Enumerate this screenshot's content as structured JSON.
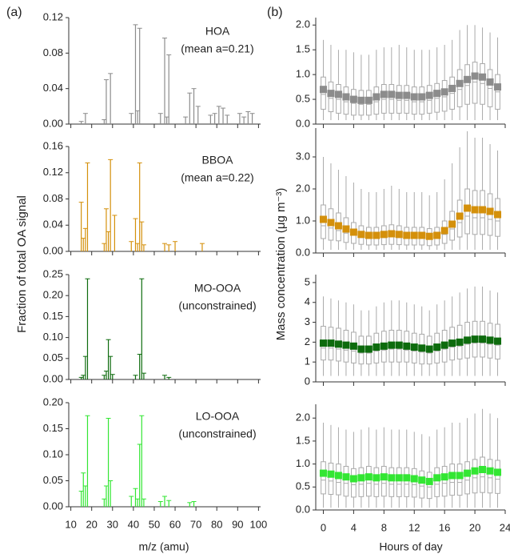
{
  "figure": {
    "panel_a": "(a)",
    "panel_b": "(b)",
    "left_ylabel": "Fraction of total OA signal",
    "left_xlabel": "m/z (amu)",
    "right_ylabel": "Mass concentration (μg m⁻³)",
    "right_xlabel": "Hours of day"
  },
  "chart_data": [
    {
      "type": "bar",
      "label": "HOA",
      "note": "(mean a=0.21)",
      "color": "#8c8c8c",
      "x": [
        15,
        17,
        26,
        27,
        29,
        39,
        41,
        42,
        43,
        53,
        55,
        56,
        57,
        65,
        67,
        69,
        71,
        77,
        79,
        81,
        83,
        85,
        91,
        93,
        95,
        97
      ],
      "values": [
        0.003,
        0.012,
        0.005,
        0.05,
        0.057,
        0.012,
        0.112,
        0.015,
        0.108,
        0.012,
        0.097,
        0.008,
        0.078,
        0.008,
        0.035,
        0.04,
        0.02,
        0.01,
        0.012,
        0.02,
        0.018,
        0.01,
        0.012,
        0.008,
        0.014,
        0.012
      ],
      "xlim": [
        9,
        101
      ],
      "xticks": [
        10,
        20,
        30,
        40,
        50,
        60,
        70,
        80,
        90,
        100
      ],
      "ylim": [
        0,
        0.12
      ],
      "yticks": [
        {
          "value": 0,
          "label": "0.00"
        },
        0.04,
        0.08,
        0.12
      ]
    },
    {
      "type": "bar",
      "label": "BBOA",
      "note": "(mean a=0.22)",
      "color": "#d4900b",
      "x": [
        15,
        16,
        17,
        18,
        26,
        27,
        28,
        29,
        31,
        39,
        41,
        42,
        43,
        44,
        45,
        55,
        57,
        60,
        73
      ],
      "values": [
        0.075,
        0.02,
        0.035,
        0.135,
        0.012,
        0.065,
        0.03,
        0.14,
        0.055,
        0.015,
        0.05,
        0.012,
        0.135,
        0.045,
        0.01,
        0.012,
        0.01,
        0.015,
        0.012
      ],
      "xlim": [
        9,
        101
      ],
      "xticks": [
        10,
        20,
        30,
        40,
        50,
        60,
        70,
        80,
        90,
        100
      ],
      "ylim": [
        0,
        0.16
      ],
      "yticks": [
        {
          "value": 0,
          "label": "0.00"
        },
        0.04,
        0.08,
        0.12,
        0.16
      ]
    },
    {
      "type": "bar",
      "label": "MO-OOA",
      "note": "(unconstrained)",
      "color": "#0d6b0d",
      "x": [
        15,
        16,
        17,
        18,
        26,
        27,
        28,
        29,
        30,
        41,
        43,
        44,
        45,
        55,
        57
      ],
      "values": [
        0.005,
        0.01,
        0.055,
        0.24,
        0.01,
        0.02,
        0.095,
        0.055,
        0.012,
        0.01,
        0.06,
        0.24,
        0.015,
        0.01,
        0.005
      ],
      "xlim": [
        9,
        101
      ],
      "xticks": [
        10,
        20,
        30,
        40,
        50,
        60,
        70,
        80,
        90,
        100
      ],
      "ylim": [
        0,
        0.25
      ],
      "yticks": [
        {
          "value": 0,
          "label": "0.00"
        },
        0.05,
        {
          "value": 0.1,
          "label": "0.10"
        },
        0.15,
        {
          "value": 0.2,
          "label": "0.20"
        },
        0.25
      ]
    },
    {
      "type": "bar",
      "label": "LO-OOA",
      "note": "(unconstrained)",
      "color": "#33e633",
      "x": [
        15,
        16,
        17,
        18,
        26,
        27,
        28,
        29,
        39,
        41,
        42,
        43,
        44,
        45,
        53,
        55,
        57,
        67,
        69
      ],
      "values": [
        0.03,
        0.065,
        0.04,
        0.175,
        0.015,
        0.04,
        0.17,
        0.05,
        0.02,
        0.035,
        0.015,
        0.12,
        0.175,
        0.015,
        0.01,
        0.02,
        0.012,
        0.008,
        0.01
      ],
      "xlim": [
        9,
        101
      ],
      "xticks": [
        10,
        20,
        30,
        40,
        50,
        60,
        70,
        80,
        90,
        100
      ],
      "ylim": [
        0,
        0.2
      ],
      "yticks": [
        {
          "value": 0,
          "label": "0.00"
        },
        0.05,
        {
          "value": 0.1,
          "label": "0.10"
        },
        0.15,
        {
          "value": 0.2,
          "label": "0.20"
        }
      ]
    },
    {
      "type": "box",
      "color": "#8c8c8c",
      "x": [
        0,
        1,
        2,
        3,
        4,
        5,
        6,
        7,
        8,
        9,
        10,
        11,
        12,
        13,
        14,
        15,
        16,
        17,
        18,
        19,
        20,
        21,
        22,
        23
      ],
      "mean": [
        0.7,
        0.62,
        0.6,
        0.55,
        0.5,
        0.48,
        0.48,
        0.55,
        0.6,
        0.6,
        0.58,
        0.58,
        0.55,
        0.55,
        0.58,
        0.62,
        0.65,
        0.72,
        0.82,
        0.9,
        0.97,
        0.95,
        0.85,
        0.75
      ],
      "q1": [
        0.3,
        0.25,
        0.22,
        0.2,
        0.18,
        0.18,
        0.18,
        0.2,
        0.22,
        0.22,
        0.22,
        0.22,
        0.2,
        0.2,
        0.22,
        0.24,
        0.26,
        0.3,
        0.35,
        0.4,
        0.42,
        0.4,
        0.35,
        0.3
      ],
      "median": [
        0.6,
        0.52,
        0.5,
        0.45,
        0.42,
        0.4,
        0.4,
        0.45,
        0.5,
        0.5,
        0.48,
        0.48,
        0.45,
        0.45,
        0.48,
        0.52,
        0.55,
        0.62,
        0.7,
        0.78,
        0.85,
        0.82,
        0.72,
        0.65
      ],
      "q3": [
        0.95,
        0.85,
        0.8,
        0.75,
        0.7,
        0.68,
        0.68,
        0.75,
        0.8,
        0.8,
        0.78,
        0.78,
        0.75,
        0.75,
        0.78,
        0.82,
        0.88,
        0.95,
        1.1,
        1.2,
        1.25,
        1.22,
        1.1,
        1.0
      ],
      "low": [
        0.08,
        0.08,
        0.08,
        0.08,
        0.08,
        0.08,
        0.08,
        0.08,
        0.08,
        0.08,
        0.08,
        0.08,
        0.08,
        0.08,
        0.08,
        0.08,
        0.08,
        0.08,
        0.08,
        0.08,
        0.08,
        0.08,
        0.08,
        0.08
      ],
      "high": [
        1.7,
        1.6,
        1.5,
        1.5,
        1.45,
        1.4,
        1.4,
        1.5,
        1.55,
        1.55,
        1.6,
        1.55,
        1.5,
        1.5,
        1.5,
        1.55,
        1.6,
        1.7,
        1.9,
        2.0,
        2.0,
        1.95,
        1.85,
        1.75
      ],
      "xlim": [
        -1,
        24
      ],
      "xticks": [
        0,
        4,
        8,
        12,
        16,
        20,
        24
      ],
      "ylim": [
        0,
        2.15
      ],
      "yticks": [
        {
          "value": 0,
          "label": "0.0"
        },
        0.5,
        {
          "value": 1,
          "label": "1.0"
        },
        1.5,
        {
          "value": 2,
          "label": "2.0"
        }
      ]
    },
    {
      "type": "box",
      "color": "#d4900b",
      "x": [
        0,
        1,
        2,
        3,
        4,
        5,
        6,
        7,
        8,
        9,
        10,
        11,
        12,
        13,
        14,
        15,
        16,
        17,
        18,
        19,
        20,
        21,
        22,
        23
      ],
      "mean": [
        1.05,
        0.95,
        0.85,
        0.75,
        0.65,
        0.58,
        0.55,
        0.55,
        0.58,
        0.6,
        0.58,
        0.55,
        0.55,
        0.55,
        0.52,
        0.55,
        0.7,
        0.9,
        1.15,
        1.4,
        1.35,
        1.35,
        1.3,
        1.2
      ],
      "q1": [
        0.45,
        0.4,
        0.38,
        0.33,
        0.3,
        0.27,
        0.25,
        0.25,
        0.26,
        0.27,
        0.26,
        0.25,
        0.25,
        0.25,
        0.23,
        0.25,
        0.3,
        0.4,
        0.5,
        0.6,
        0.58,
        0.58,
        0.55,
        0.52
      ],
      "median": [
        0.85,
        0.78,
        0.7,
        0.62,
        0.55,
        0.48,
        0.46,
        0.46,
        0.48,
        0.5,
        0.48,
        0.46,
        0.46,
        0.46,
        0.44,
        0.46,
        0.58,
        0.75,
        0.95,
        1.15,
        1.1,
        1.1,
        1.05,
        1.0
      ],
      "q3": [
        1.5,
        1.38,
        1.25,
        1.1,
        0.95,
        0.85,
        0.8,
        0.8,
        0.85,
        0.88,
        0.85,
        0.8,
        0.8,
        0.8,
        0.76,
        0.8,
        1.0,
        1.3,
        1.65,
        2.0,
        1.95,
        1.95,
        1.85,
        1.7
      ],
      "low": [
        0.1,
        0.1,
        0.1,
        0.1,
        0.1,
        0.1,
        0.1,
        0.1,
        0.1,
        0.1,
        0.1,
        0.1,
        0.1,
        0.1,
        0.1,
        0.1,
        0.1,
        0.1,
        0.1,
        0.1,
        0.1,
        0.1,
        0.1,
        0.1
      ],
      "high": [
        3.0,
        2.8,
        2.6,
        2.4,
        2.2,
        2.0,
        1.9,
        1.9,
        2.0,
        2.1,
        2.0,
        1.9,
        1.9,
        1.9,
        1.8,
        1.9,
        2.3,
        2.8,
        3.3,
        3.8,
        3.6,
        3.6,
        3.4,
        3.2
      ],
      "xlim": [
        -1,
        24
      ],
      "xticks": [
        0,
        4,
        8,
        12,
        16,
        20,
        24
      ],
      "ylim": [
        0,
        3.9
      ],
      "yticks": [
        {
          "value": 0,
          "label": "0.0"
        },
        {
          "value": 1,
          "label": "1.0"
        },
        {
          "value": 2,
          "label": "2.0"
        },
        {
          "value": 3,
          "label": "3.0"
        }
      ]
    },
    {
      "type": "box",
      "color": "#0d6b0d",
      "x": [
        0,
        1,
        2,
        3,
        4,
        5,
        6,
        7,
        8,
        9,
        10,
        11,
        12,
        13,
        14,
        15,
        16,
        17,
        18,
        19,
        20,
        21,
        22,
        23
      ],
      "mean": [
        1.95,
        1.95,
        1.9,
        1.85,
        1.8,
        1.65,
        1.65,
        1.75,
        1.8,
        1.85,
        1.85,
        1.8,
        1.75,
        1.7,
        1.65,
        1.75,
        1.85,
        1.95,
        2.0,
        2.1,
        2.15,
        2.15,
        2.1,
        2.05
      ],
      "q1": [
        1.1,
        1.1,
        1.05,
        1.0,
        0.95,
        0.9,
        0.9,
        0.95,
        1.0,
        1.0,
        1.0,
        1.0,
        0.95,
        0.9,
        0.9,
        0.95,
        1.0,
        1.1,
        1.15,
        1.2,
        1.25,
        1.25,
        1.2,
        1.15
      ],
      "median": [
        1.7,
        1.7,
        1.65,
        1.6,
        1.55,
        1.45,
        1.45,
        1.55,
        1.6,
        1.65,
        1.65,
        1.6,
        1.55,
        1.5,
        1.45,
        1.55,
        1.65,
        1.75,
        1.8,
        1.9,
        1.95,
        1.95,
        1.9,
        1.85
      ],
      "q3": [
        2.8,
        2.75,
        2.7,
        2.6,
        2.5,
        2.3,
        2.3,
        2.45,
        2.55,
        2.6,
        2.6,
        2.55,
        2.45,
        2.4,
        2.3,
        2.45,
        2.6,
        2.75,
        2.85,
        3.0,
        3.05,
        3.05,
        2.95,
        2.9
      ],
      "low": [
        0.3,
        0.3,
        0.3,
        0.3,
        0.3,
        0.3,
        0.3,
        0.3,
        0.3,
        0.3,
        0.3,
        0.3,
        0.3,
        0.3,
        0.3,
        0.3,
        0.3,
        0.3,
        0.3,
        0.3,
        0.3,
        0.3,
        0.3,
        0.3
      ],
      "high": [
        4.3,
        4.2,
        4.1,
        4.0,
        3.9,
        3.6,
        3.6,
        3.8,
        4.0,
        4.1,
        4.1,
        4.0,
        3.9,
        3.8,
        3.6,
        3.9,
        4.1,
        4.3,
        4.5,
        4.7,
        4.8,
        4.8,
        4.6,
        4.5
      ],
      "xlim": [
        -1,
        24
      ],
      "xticks": [
        0,
        4,
        8,
        12,
        16,
        20,
        24
      ],
      "ylim": [
        0,
        5.4
      ],
      "yticks": [
        0,
        1,
        2,
        3,
        4,
        5
      ]
    },
    {
      "type": "box",
      "color": "#33e633",
      "x": [
        0,
        1,
        2,
        3,
        4,
        5,
        6,
        7,
        8,
        9,
        10,
        11,
        12,
        13,
        14,
        15,
        16,
        17,
        18,
        19,
        20,
        21,
        22,
        23
      ],
      "mean": [
        0.8,
        0.78,
        0.75,
        0.72,
        0.68,
        0.7,
        0.72,
        0.7,
        0.72,
        0.7,
        0.7,
        0.7,
        0.68,
        0.65,
        0.62,
        0.7,
        0.72,
        0.75,
        0.75,
        0.8,
        0.85,
        0.88,
        0.85,
        0.82
      ],
      "q1": [
        0.35,
        0.34,
        0.33,
        0.3,
        0.28,
        0.29,
        0.3,
        0.29,
        0.3,
        0.29,
        0.29,
        0.29,
        0.28,
        0.26,
        0.25,
        0.29,
        0.3,
        0.32,
        0.32,
        0.35,
        0.37,
        0.38,
        0.37,
        0.36
      ],
      "median": [
        0.65,
        0.63,
        0.6,
        0.58,
        0.55,
        0.56,
        0.58,
        0.56,
        0.58,
        0.56,
        0.56,
        0.56,
        0.55,
        0.52,
        0.5,
        0.56,
        0.58,
        0.6,
        0.6,
        0.65,
        0.7,
        0.72,
        0.7,
        0.67
      ],
      "q3": [
        1.05,
        1.02,
        1.0,
        0.95,
        0.9,
        0.92,
        0.95,
        0.92,
        0.95,
        0.92,
        0.92,
        0.92,
        0.9,
        0.85,
        0.82,
        0.92,
        0.95,
        1.0,
        1.0,
        1.05,
        1.1,
        1.15,
        1.1,
        1.08
      ],
      "low": [
        0.05,
        0.05,
        0.05,
        0.05,
        0.05,
        0.05,
        0.05,
        0.05,
        0.05,
        0.05,
        0.05,
        0.05,
        0.05,
        0.05,
        0.05,
        0.05,
        0.05,
        0.05,
        0.05,
        0.05,
        0.05,
        0.05,
        0.05,
        0.05
      ],
      "high": [
        1.9,
        1.85,
        1.8,
        1.75,
        1.7,
        1.75,
        1.8,
        1.75,
        1.8,
        1.75,
        1.75,
        1.75,
        1.7,
        1.65,
        1.6,
        1.75,
        1.8,
        1.9,
        1.9,
        2.0,
        2.1,
        2.2,
        2.1,
        2.0
      ],
      "xlim": [
        -1,
        24
      ],
      "xticks": [
        0,
        4,
        8,
        12,
        16,
        20,
        24
      ],
      "ylim": [
        0,
        2.3
      ],
      "yticks": [
        {
          "value": 0,
          "label": "0.0"
        },
        0.5,
        {
          "value": 1,
          "label": "1.0"
        },
        1.5,
        {
          "value": 2,
          "label": "2.0"
        }
      ]
    }
  ]
}
